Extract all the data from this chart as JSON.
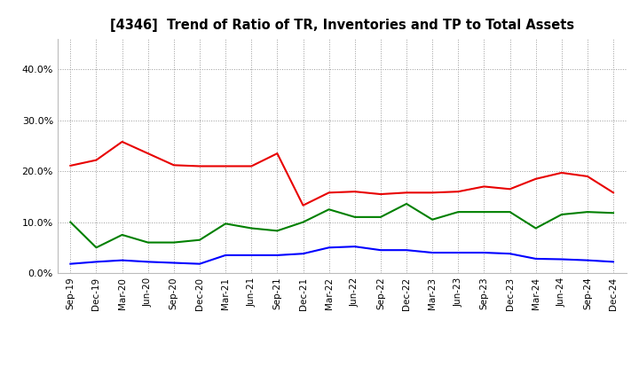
{
  "title": "[4346]  Trend of Ratio of TR, Inventories and TP to Total Assets",
  "x_labels": [
    "Sep-19",
    "Dec-19",
    "Mar-20",
    "Jun-20",
    "Sep-20",
    "Dec-20",
    "Mar-21",
    "Jun-21",
    "Sep-21",
    "Dec-21",
    "Mar-22",
    "Jun-22",
    "Sep-22",
    "Dec-22",
    "Mar-23",
    "Jun-23",
    "Sep-23",
    "Dec-23",
    "Mar-24",
    "Jun-24",
    "Sep-24",
    "Dec-24"
  ],
  "trade_receivables": [
    0.211,
    0.222,
    0.258,
    0.235,
    0.212,
    0.21,
    0.21,
    0.21,
    0.235,
    0.133,
    0.158,
    0.16,
    0.155,
    0.158,
    0.158,
    0.16,
    0.17,
    0.165,
    0.185,
    0.197,
    0.19,
    0.158
  ],
  "inventories": [
    0.018,
    0.022,
    0.025,
    0.022,
    0.02,
    0.018,
    0.035,
    0.035,
    0.035,
    0.038,
    0.05,
    0.052,
    0.045,
    0.045,
    0.04,
    0.04,
    0.04,
    0.038,
    0.028,
    0.027,
    0.025,
    0.022
  ],
  "trade_payables": [
    0.1,
    0.05,
    0.075,
    0.06,
    0.06,
    0.065,
    0.097,
    0.088,
    0.083,
    0.1,
    0.125,
    0.11,
    0.11,
    0.136,
    0.105,
    0.12,
    0.12,
    0.12,
    0.088,
    0.115,
    0.12,
    0.118
  ],
  "tr_color": "#e80000",
  "inv_color": "#0000ff",
  "tp_color": "#008000",
  "ylim": [
    0.0,
    0.46
  ],
  "yticks": [
    0.0,
    0.1,
    0.2,
    0.3,
    0.4
  ],
  "background_color": "#ffffff",
  "grid_color": "#999999"
}
